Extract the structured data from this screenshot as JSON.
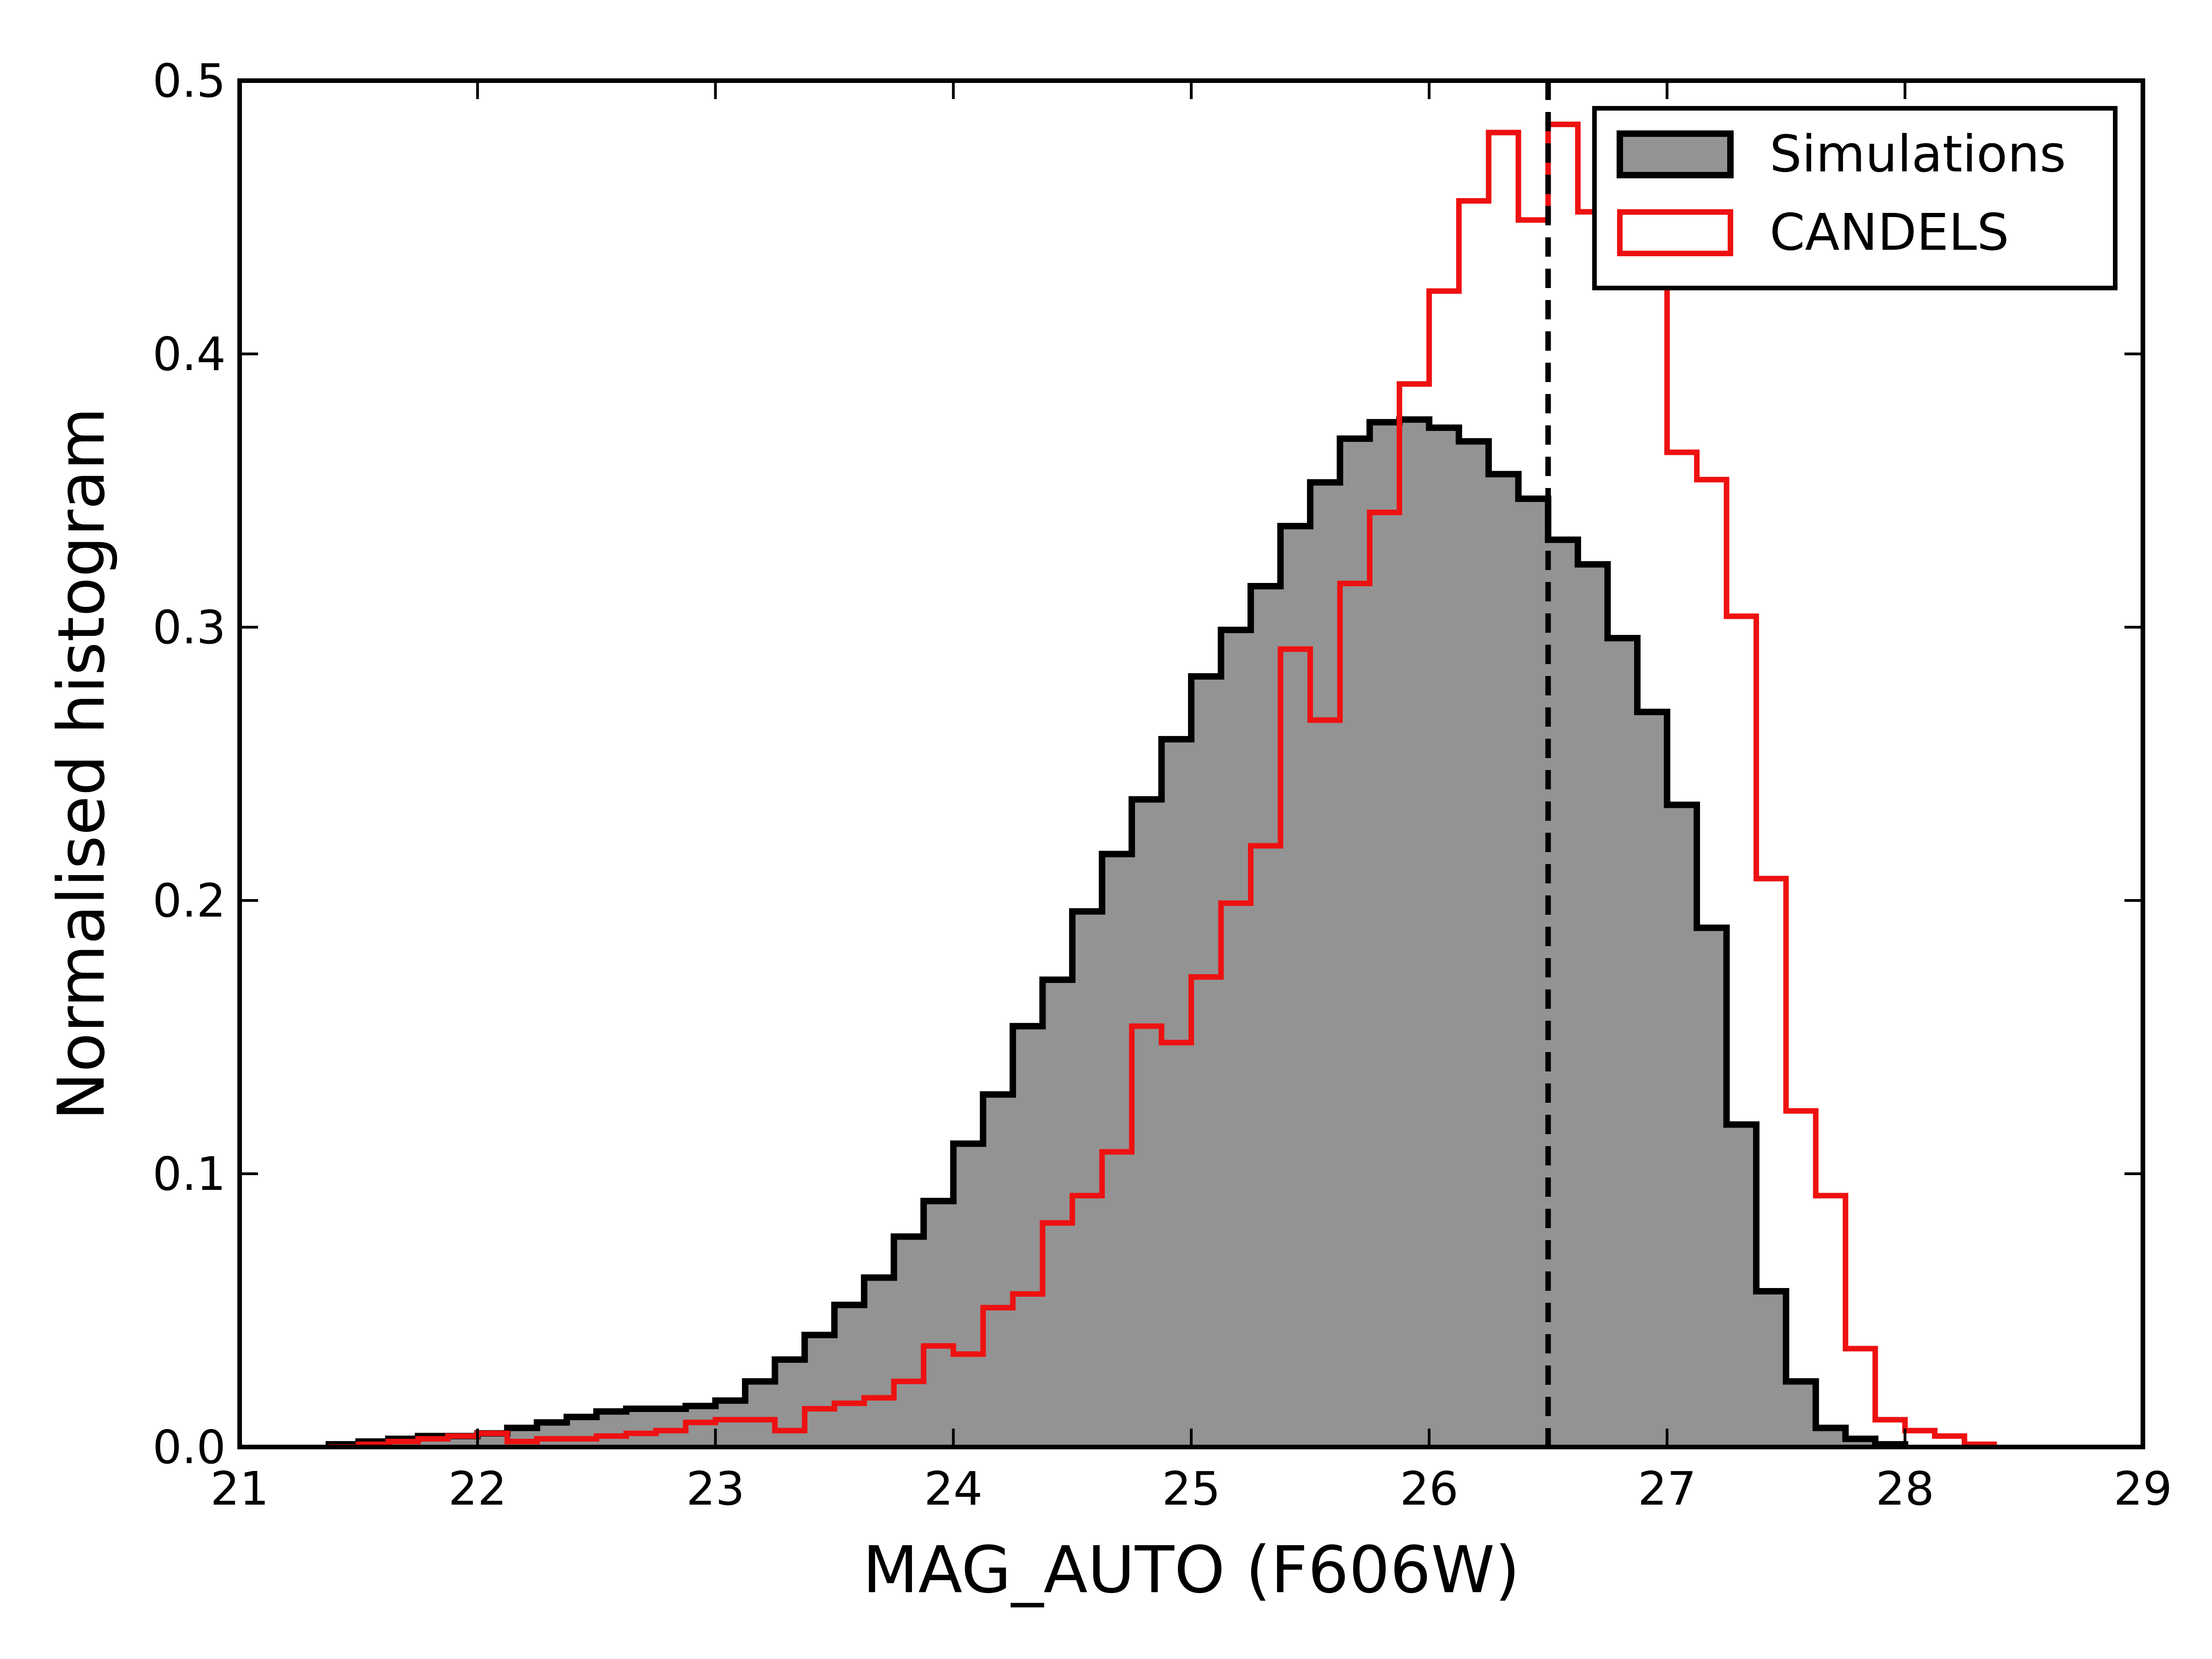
{
  "chart_data": {
    "type": "histogram",
    "xlabel": "MAG_AUTO (F606W)",
    "ylabel": "Normalised histogram",
    "xlim": [
      21,
      29
    ],
    "ylim": [
      0,
      0.5
    ],
    "xticks": [
      21,
      22,
      23,
      24,
      25,
      26,
      27,
      28,
      29
    ],
    "yticks": [
      0.0,
      0.1,
      0.2,
      0.3,
      0.4,
      0.5
    ],
    "ytick_labels": [
      "0.0",
      "0.1",
      "0.2",
      "0.3",
      "0.4",
      "0.5"
    ],
    "grid": false,
    "legend_position": "top-right",
    "bin_width": 0.125,
    "bin_start": 21.375,
    "series": [
      {
        "name": "Simulations",
        "style": "filled-step",
        "color": "#000000",
        "fill": "#939393",
        "values": [
          0.001,
          0.002,
          0.003,
          0.004,
          0.004,
          0.005,
          0.007,
          0.009,
          0.011,
          0.013,
          0.014,
          0.014,
          0.015,
          0.017,
          0.024,
          0.032,
          0.041,
          0.052,
          0.062,
          0.077,
          0.09,
          0.111,
          0.129,
          0.154,
          0.171,
          0.196,
          0.217,
          0.237,
          0.259,
          0.282,
          0.299,
          0.315,
          0.337,
          0.353,
          0.369,
          0.375,
          0.376,
          0.373,
          0.368,
          0.356,
          0.347,
          0.332,
          0.323,
          0.296,
          0.269,
          0.235,
          0.19,
          0.118,
          0.057,
          0.024,
          0.007,
          0.003,
          0.001
        ]
      },
      {
        "name": "CANDELS",
        "style": "step",
        "color": "#ee1111",
        "values": [
          0.0,
          0.001,
          0.002,
          0.003,
          0.004,
          0.005,
          0.002,
          0.003,
          0.003,
          0.004,
          0.005,
          0.006,
          0.009,
          0.01,
          0.01,
          0.006,
          0.014,
          0.016,
          0.018,
          0.024,
          0.037,
          0.034,
          0.051,
          0.056,
          0.082,
          0.092,
          0.108,
          0.154,
          0.148,
          0.172,
          0.199,
          0.22,
          0.292,
          0.266,
          0.316,
          0.342,
          0.389,
          0.423,
          0.456,
          0.481,
          0.449,
          0.484,
          0.452,
          0.467,
          0.465,
          0.364,
          0.354,
          0.304,
          0.208,
          0.123,
          0.092,
          0.036,
          0.01,
          0.006,
          0.004,
          0.001
        ]
      }
    ],
    "annotations": [
      {
        "type": "vertical-dashed-line",
        "x": 26.5,
        "color": "#000000"
      }
    ]
  }
}
